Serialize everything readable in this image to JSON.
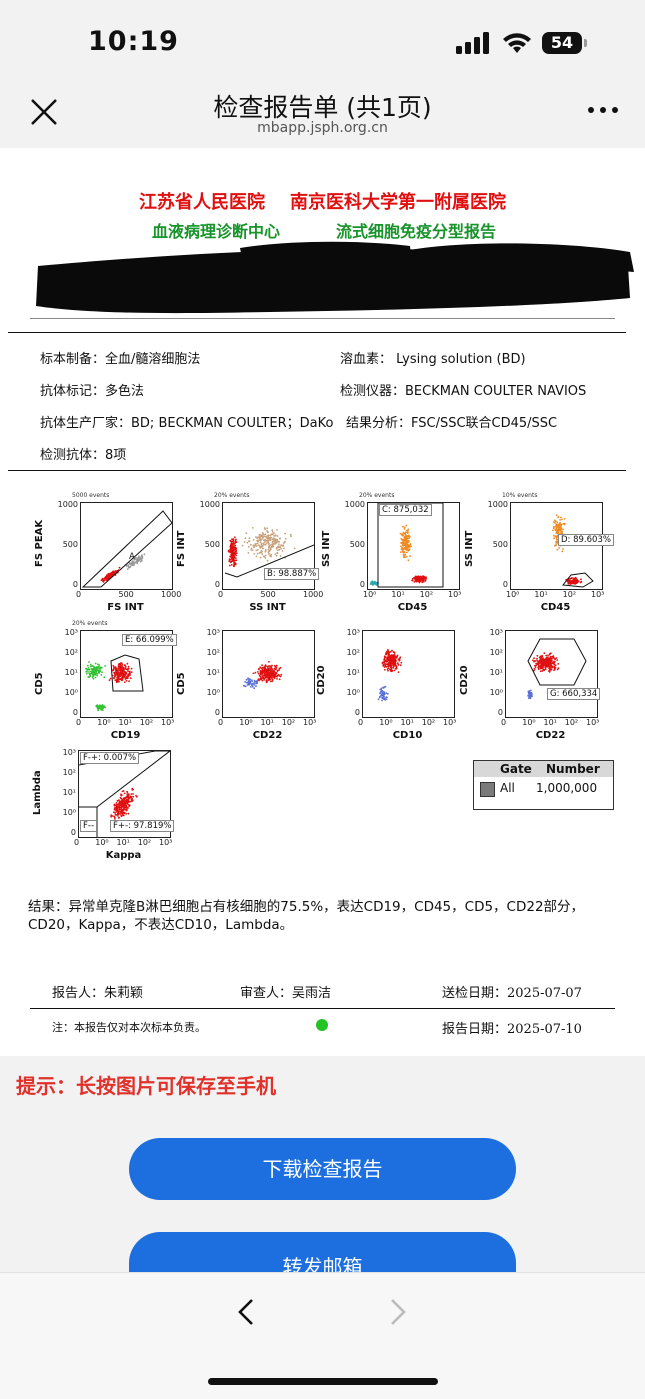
{
  "status": {
    "time": "10:19",
    "battery": "54"
  },
  "header": {
    "title": "检查报告单 (共1页)",
    "host": "mbapp.jsph.org.cn"
  },
  "report": {
    "hospital": "江苏省人民医院    南京医科大学第一附属医院",
    "dept": "血液病理诊断中心",
    "report_type": "流式细胞免疫分型报告",
    "info": {
      "prep": "标本制备：全血/髓溶细胞法",
      "lysing": "溶血素： Lysing solution (BD)",
      "antibody_label": "抗体标记：多色法",
      "instrument": "检测仪器：BECKMAN COULTER NAVIOS",
      "manufacturer": "抗体生产厂家：BD; BECKMAN COULTER；DaKo",
      "analysis": "结果分析：FSC/SSC联合CD45/SSC",
      "antibody_count": "检测抗体：8项"
    },
    "plots": [
      {
        "ylabel": "FS PEAK",
        "xlabel": "FS INT",
        "events": "5000 events",
        "yticks": [
          "1000",
          "500",
          "0"
        ],
        "xticks": [
          "0",
          "500",
          "1000"
        ],
        "gate": "A"
      },
      {
        "ylabel": "FS INT",
        "xlabel": "SS INT",
        "events": "20% events",
        "yticks": [
          "1000",
          "500",
          "0"
        ],
        "xticks": [
          "0",
          "500",
          "1000"
        ],
        "gate": "B: 98.887%"
      },
      {
        "ylabel": "SS INT",
        "xlabel": "CD45",
        "events": "20% events",
        "yticks": [
          "1000",
          "500",
          "0"
        ],
        "xticks": [
          "10⁰",
          "10¹",
          "10²",
          "10³"
        ],
        "gate": "C: 875,032"
      },
      {
        "ylabel": "SS INT",
        "xlabel": "CD45",
        "events": "10% events",
        "yticks": [
          "1000",
          "500",
          "0"
        ],
        "xticks": [
          "10⁰",
          "10¹",
          "10²",
          "10³"
        ],
        "gate": "D: 89.603%"
      },
      {
        "ylabel": "CD5",
        "xlabel": "CD19",
        "events": "20% events",
        "yticks": [
          "10³",
          "10²",
          "10¹",
          "10⁰",
          "0"
        ],
        "xticks": [
          "0",
          "10⁰",
          "10¹",
          "10²",
          "10³"
        ],
        "gate": "E: 66.099%"
      },
      {
        "ylabel": "CD5",
        "xlabel": "CD22",
        "events": "",
        "yticks": [
          "10³",
          "10²",
          "10¹",
          "10⁰",
          "0"
        ],
        "xticks": [
          "0",
          "10⁰",
          "10¹",
          "10²",
          "10³"
        ],
        "gate": ""
      },
      {
        "ylabel": "CD20",
        "xlabel": "CD10",
        "events": "",
        "yticks": [
          "10³",
          "10²",
          "10¹",
          "10⁰",
          "0"
        ],
        "xticks": [
          "0",
          "10⁰",
          "10¹",
          "10²",
          "10³"
        ],
        "gate": ""
      },
      {
        "ylabel": "CD20",
        "xlabel": "CD22",
        "events": "",
        "yticks": [
          "10³",
          "10²",
          "10¹",
          "10⁰",
          "0"
        ],
        "xticks": [
          "0",
          "10⁰",
          "10¹",
          "10²",
          "10³"
        ],
        "gate": "G: 660,334"
      },
      {
        "ylabel": "Lambda",
        "xlabel": "Kappa",
        "events": "",
        "yticks": [
          "10³",
          "10²",
          "10¹",
          "10⁰",
          "0"
        ],
        "xticks": [
          "0",
          "10⁰",
          "10¹",
          "10²",
          "10³"
        ],
        "gate": "F-+: 0.007%",
        "gate2": "F+-: 97.819%",
        "gate3": "F--"
      }
    ],
    "gate_table": {
      "col1": "Gate",
      "col2": "Number",
      "row_gate": "All",
      "row_number": "1,000,000"
    },
    "conclusion": "结果：异常单克隆B淋巴细胞占有核细胞的75.5%，表达CD19，CD45，CD5，CD22部分，CD20，Kappa，不表达CD10，Lambda。",
    "reporter": "报告人：朱莉颖",
    "reviewer": "审查人：吴雨洁",
    "submit_date": "送检日期：2025-07-07",
    "note": "注：本报告仅对本次标本负责。",
    "report_date": "报告日期：2025-07-10"
  },
  "tip": "提示：长按图片可保存至手机",
  "buttons": {
    "download": "下载检查报告",
    "forward": "转发邮箱"
  }
}
